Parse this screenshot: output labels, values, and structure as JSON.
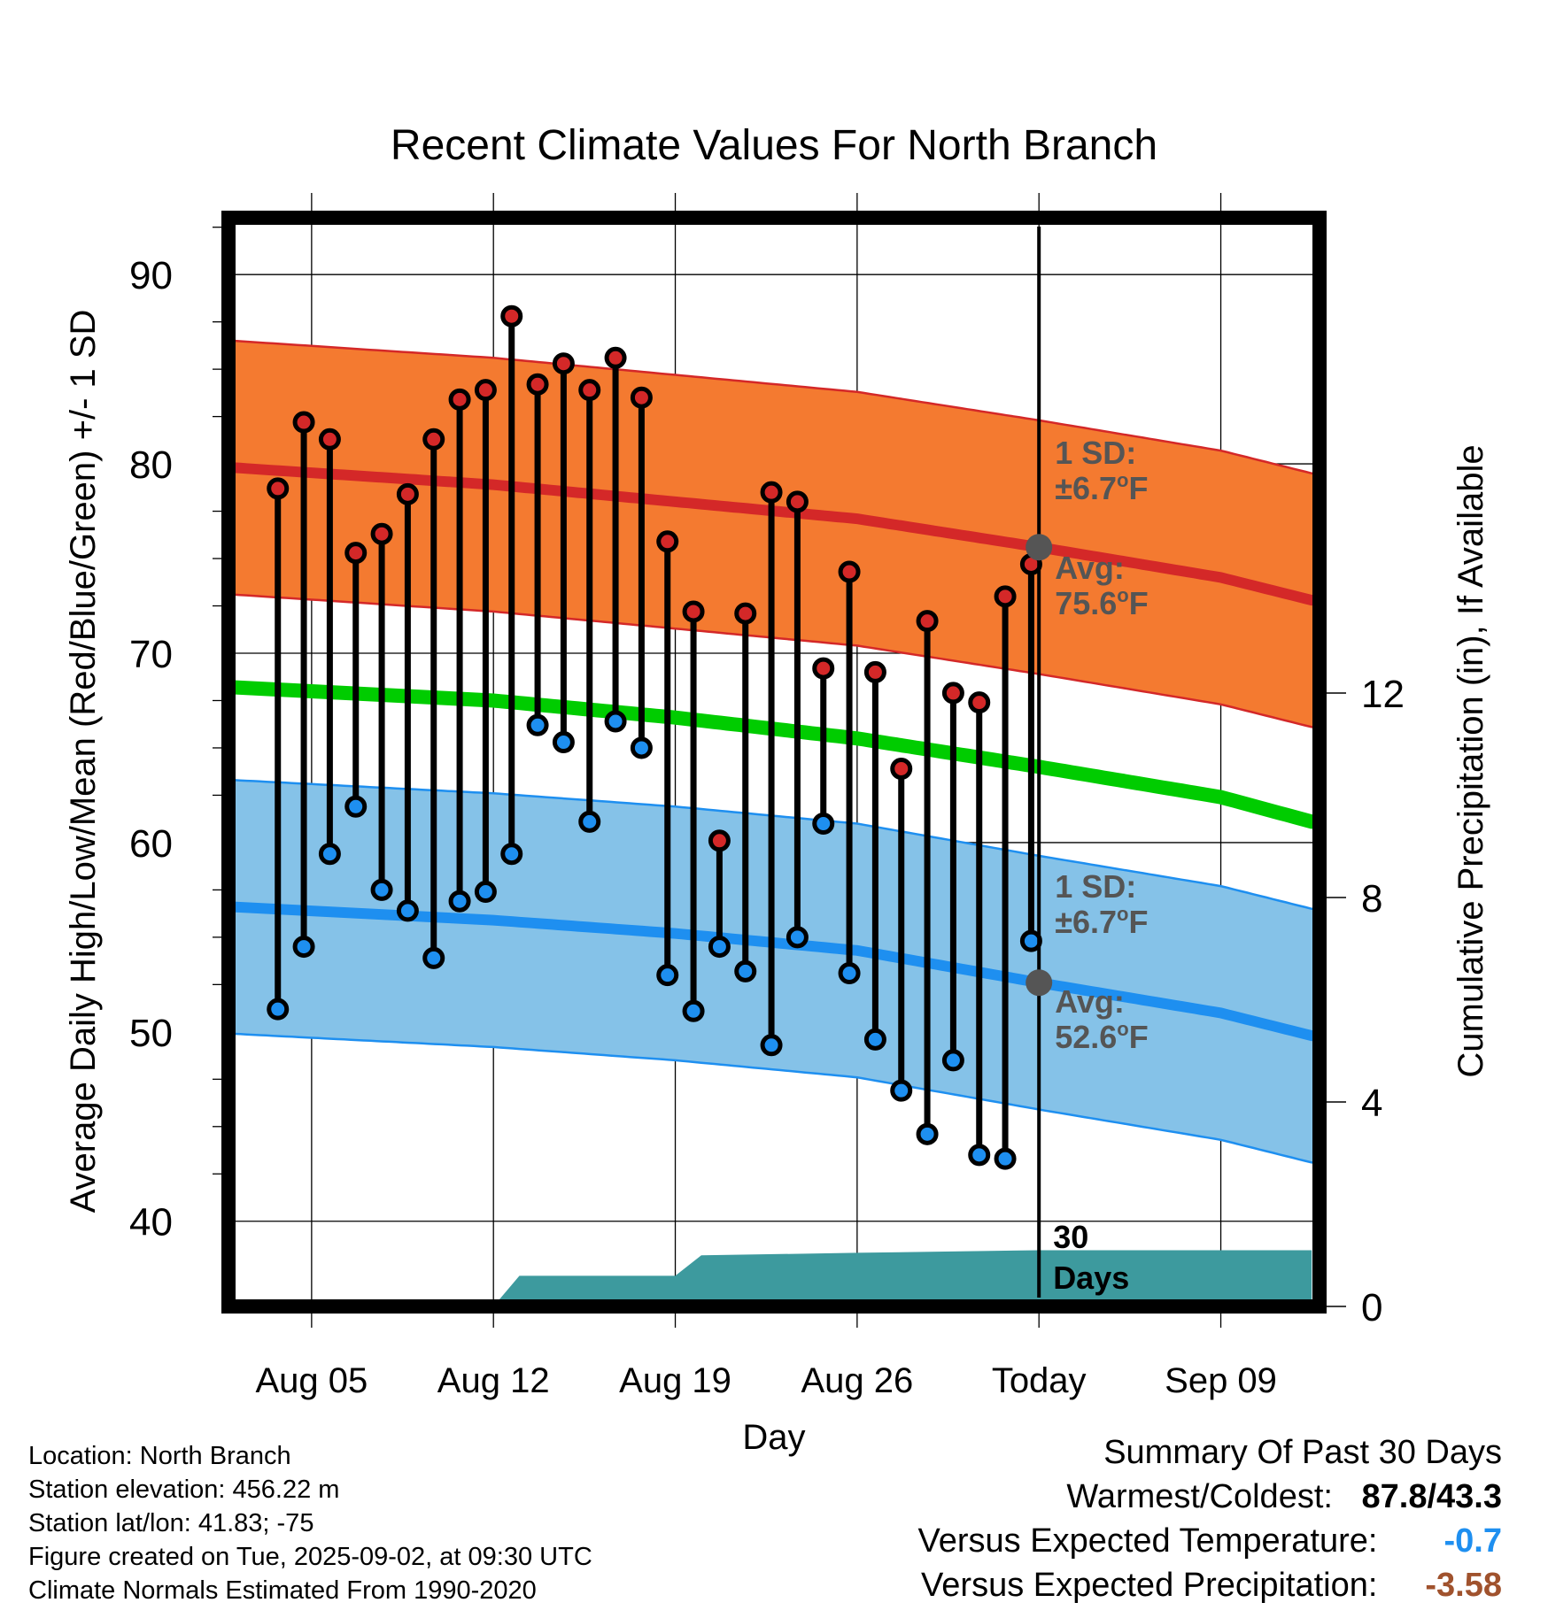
{
  "chart_data": {
    "type": "line",
    "title": "Recent Climate Values For North Branch",
    "xlabel": "Day",
    "ylabel": "Average Daily High/Low/Mean (Red/Blue/Green) +/- 1 SD",
    "y2label": "Cumulative Precipitation (in), If Available",
    "x_tick_labels": [
      "Aug 05",
      "Aug 12",
      "Aug 19",
      "Aug 26",
      "Today",
      "Sep 09"
    ],
    "x_tick_days": [
      5,
      12,
      19,
      26,
      33,
      40
    ],
    "xlim": [
      1.8,
      43.8
    ],
    "ylim": [
      35.5,
      93
    ],
    "y_ticks": [
      40,
      50,
      60,
      70,
      80,
      90
    ],
    "y2lim": [
      0,
      21.3
    ],
    "y2_ticks": [
      0,
      4,
      8,
      12
    ],
    "grid": true,
    "today_day": 33,
    "today_marker_label": "30\nDays",
    "daily_values": {
      "days": [
        4,
        5,
        6,
        7,
        8,
        9,
        10,
        11,
        12,
        13,
        14,
        15,
        16,
        17,
        18,
        19,
        20,
        21,
        22,
        23,
        24,
        25,
        26,
        27,
        28,
        29,
        30,
        31,
        32
      ],
      "highs": [
        78.7,
        82.2,
        81.3,
        75.3,
        76.3,
        78.4,
        81.3,
        83.4,
        83.9,
        87.8,
        84.2,
        85.3,
        83.9,
        85.6,
        83.5,
        75.9,
        72.2,
        60.1,
        72.1,
        78.5,
        78.0,
        69.2,
        74.3,
        69.0,
        63.9,
        71.7,
        67.9,
        67.4,
        73.0
      ],
      "lows": [
        51.2,
        54.5,
        59.4,
        61.9,
        57.5,
        56.4,
        53.9,
        56.9,
        57.4,
        59.4,
        66.2,
        65.3,
        61.1,
        66.4,
        65.0,
        53.0,
        51.1,
        54.5,
        53.2,
        49.3,
        55.0,
        61.0,
        53.1,
        49.6,
        46.9,
        44.6,
        48.5,
        43.5,
        43.3
      ]
    },
    "last_day": {
      "day": 33,
      "high": 74.7,
      "low": 54.8
    },
    "series": [
      {
        "name": "High",
        "color": "#d42828",
        "x": [
          2,
          12,
          19,
          26,
          33,
          40,
          43.5
        ],
        "mean": [
          79.8,
          78.9,
          78.0,
          77.1,
          75.6,
          74.0,
          72.8
        ],
        "sd": 6.7
      },
      {
        "name": "Low",
        "color": "#1e8ff0",
        "x": [
          2,
          12,
          19,
          26,
          33,
          40,
          43.5
        ],
        "mean": [
          56.6,
          55.9,
          55.2,
          54.3,
          52.6,
          51.0,
          49.8
        ],
        "sd": 6.7
      },
      {
        "name": "Mean",
        "color": "#00cc00",
        "x": [
          2,
          12,
          19,
          26,
          33,
          40,
          43.5
        ],
        "mean": [
          68.2,
          67.5,
          66.6,
          65.5,
          64.0,
          62.4,
          61.1
        ]
      }
    ],
    "precipitation": {
      "color": "#3d9a9e",
      "x": [
        12,
        13,
        19,
        20,
        26,
        33,
        43.5
      ],
      "cumulative": [
        0,
        0.6,
        0.6,
        1.0,
        1.05,
        1.1,
        1.1
      ]
    },
    "annotations": {
      "high_sd": "1 SD:",
      "high_sd_val": "±6.7",
      "high_avg": "Avg:",
      "high_avg_val": "75.6",
      "low_sd": "1 SD:",
      "low_sd_val": "±6.7",
      "low_avg": "Avg:",
      "low_avg_val": "52.6",
      "degree_sup": "o",
      "unit": "F"
    }
  },
  "info": {
    "location": "Location: North Branch",
    "elevation": "Station elevation: 456.22 m",
    "latlon": "Station lat/lon: 41.83; -75",
    "created": "Figure created on Tue, 2025-09-02, at 09:30 UTC",
    "normals": "Climate Normals Estimated From 1990-2020"
  },
  "summary": {
    "title": "Summary Of Past 30 Days",
    "warm_cold_label": "Warmest/Coldest:",
    "warm_cold_value": "87.8/43.3",
    "temp_label": "Versus Expected Temperature:",
    "temp_value": "-0.7",
    "temp_color": "#1e8ff0",
    "precip_label": "Versus Expected Precipitation:",
    "precip_value": "-3.58",
    "precip_color": "#a0522d"
  }
}
